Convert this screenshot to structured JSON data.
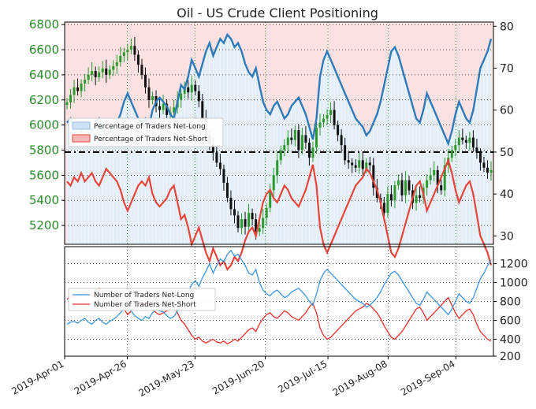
{
  "chart_data": [
    {
      "type": "candlestick",
      "title": "Oil - US Crude Client Positioning",
      "x_start": "2019-04-01",
      "x_ticks": [
        "2019-Apr-01",
        "2019-Apr-26",
        "2019-May-23",
        "2019-Jun-20",
        "2019-Jul-15",
        "2019-Aug-08",
        "2019-Sep-04"
      ],
      "y_price_ticks": [
        5200,
        5400,
        5600,
        5800,
        6000,
        6200,
        6400,
        6600,
        6800
      ],
      "y_price_range": [
        5050,
        6820
      ],
      "y_percent_ticks": [
        30,
        40,
        50,
        60,
        70,
        80
      ],
      "y_percent_range": [
        28,
        81
      ],
      "reference_line_percent": 50,
      "grid": true,
      "legend_position": "left",
      "legend_entries": [
        "Percentage of Traders Net-Long",
        "Percentage of Traders Net-Short"
      ],
      "price_close": [
        6180,
        6240,
        6300,
        6270,
        6330,
        6360,
        6400,
        6430,
        6380,
        6420,
        6450,
        6400,
        6440,
        6470,
        6500,
        6550,
        6580,
        6600,
        6630,
        6560,
        6480,
        6400,
        6300,
        6200,
        6230,
        6150,
        6120,
        6170,
        6080,
        6100,
        6140,
        6200,
        6250,
        6300,
        6260,
        6320,
        6270,
        6190,
        6050,
        5920,
        5850,
        5780,
        5700,
        5650,
        5540,
        5420,
        5330,
        5280,
        5180,
        5250,
        5190,
        5300,
        5250,
        5150,
        5180,
        5260,
        5340,
        5480,
        5600,
        5720,
        5800,
        5840,
        5900,
        5880,
        5960,
        5800,
        5920,
        5860,
        5740,
        5820,
        5980,
        6020,
        6050,
        6080,
        6120,
        6000,
        5920,
        5840,
        5720,
        5700,
        5680,
        5660,
        5720,
        5650,
        5700,
        5680,
        5500,
        5420,
        5380,
        5300,
        5450,
        5400,
        5520,
        5560,
        5440,
        5560,
        5480,
        5380,
        5440,
        5420,
        5500,
        5560,
        5600,
        5640,
        5520,
        5480,
        5680,
        5740,
        5800,
        5840,
        5900,
        5880,
        5860,
        5900,
        5820,
        5780,
        5700,
        5660,
        5620,
        5640
      ],
      "series": [
        {
          "name": "Percentage of Traders Net-Long",
          "values": [
            57,
            58,
            56,
            57,
            55,
            57,
            56,
            55,
            57,
            58,
            56,
            54,
            55,
            56,
            57,
            59,
            62,
            64,
            62,
            60,
            58,
            57,
            58,
            56,
            60,
            62,
            63,
            62,
            61,
            59,
            58,
            62,
            66,
            65,
            68,
            72,
            70,
            68,
            71,
            74,
            76,
            73,
            75,
            77,
            76,
            78,
            77,
            75,
            76,
            74,
            71,
            69,
            68,
            70,
            66,
            62,
            60,
            59,
            61,
            62,
            60,
            58,
            59,
            61,
            62,
            63,
            61,
            59,
            56,
            53,
            58,
            68,
            72,
            74,
            72,
            70,
            68,
            66,
            64,
            62,
            60,
            58,
            57,
            56,
            54,
            55,
            57,
            59,
            62,
            66,
            70,
            74,
            75,
            73,
            70,
            67,
            64,
            61,
            58,
            57,
            60,
            64,
            62,
            60,
            58,
            56,
            54,
            52,
            55,
            59,
            62,
            60,
            58,
            57,
            60,
            65,
            70,
            72,
            74,
            77
          ]
        },
        {
          "name": "Percentage of Traders Net-Short",
          "values": [
            43,
            42,
            44,
            43,
            45,
            43,
            44,
            45,
            43,
            42,
            44,
            46,
            45,
            44,
            43,
            41,
            38,
            36,
            38,
            40,
            42,
            43,
            42,
            44,
            40,
            38,
            37,
            38,
            39,
            41,
            42,
            38,
            34,
            35,
            32,
            28,
            30,
            32,
            29,
            26,
            24,
            27,
            25,
            23,
            24,
            22,
            23,
            25,
            24,
            26,
            29,
            31,
            32,
            30,
            34,
            38,
            40,
            41,
            39,
            38,
            40,
            42,
            41,
            39,
            38,
            37,
            39,
            41,
            44,
            47,
            42,
            32,
            28,
            26,
            28,
            30,
            32,
            34,
            36,
            38,
            40,
            42,
            43,
            44,
            46,
            45,
            43,
            41,
            38,
            34,
            30,
            26,
            25,
            27,
            30,
            33,
            36,
            39,
            42,
            43,
            40,
            36,
            38,
            40,
            42,
            44,
            46,
            48,
            45,
            41,
            38,
            40,
            42,
            43,
            40,
            35,
            30,
            28,
            26,
            23
          ]
        }
      ]
    },
    {
      "type": "line",
      "x_ticks": [
        "2019-Apr-01",
        "2019-Apr-26",
        "2019-May-23",
        "2019-Jun-20",
        "2019-Jul-15",
        "2019-Aug-08",
        "2019-Sep-04"
      ],
      "y_ticks": [
        200,
        400,
        600,
        800,
        1000,
        1200
      ],
      "y_range": [
        220,
        1380
      ],
      "grid": true,
      "legend_position": "left",
      "legend_entries": [
        "Number of Traders Net-Long",
        "Number of Traders Net-Short"
      ],
      "series": [
        {
          "name": "Number of Traders Net-Long",
          "values": [
            560,
            580,
            590,
            570,
            600,
            620,
            580,
            560,
            600,
            620,
            580,
            560,
            590,
            610,
            640,
            680,
            720,
            760,
            700,
            650,
            620,
            600,
            640,
            620,
            680,
            720,
            700,
            690,
            650,
            620,
            640,
            700,
            780,
            820,
            900,
            980,
            1020,
            960,
            1050,
            1120,
            1200,
            1100,
            1180,
            1250,
            1220,
            1300,
            1340,
            1280,
            1300,
            1240,
            1180,
            1100,
            1080,
            1140,
            1000,
            920,
            880,
            860,
            900,
            920,
            880,
            840,
            860,
            900,
            920,
            940,
            900,
            860,
            800,
            760,
            880,
            1020,
            1100,
            1140,
            1100,
            1060,
            1020,
            980,
            940,
            900,
            860,
            820,
            800,
            780,
            740,
            760,
            800,
            840,
            900,
            980,
            1040,
            1100,
            1120,
            1080,
            1020,
            960,
            900,
            840,
            780,
            760,
            820,
            900,
            860,
            820,
            780,
            740,
            700,
            660,
            720,
            800,
            880,
            840,
            800,
            780,
            840,
            940,
            1040,
            1100,
            1180,
            1240
          ]
        },
        {
          "name": "Number of Traders Net-Short",
          "values": [
            820,
            860,
            840,
            880,
            860,
            900,
            880,
            860,
            920,
            940,
            900,
            880,
            860,
            840,
            820,
            780,
            720,
            660,
            700,
            740,
            760,
            780,
            760,
            800,
            720,
            680,
            660,
            680,
            700,
            720,
            740,
            680,
            600,
            560,
            500,
            440,
            400,
            420,
            380,
            360,
            380,
            400,
            370,
            360,
            380,
            350,
            370,
            400,
            380,
            420,
            460,
            500,
            520,
            480,
            560,
            620,
            660,
            680,
            640,
            620,
            660,
            700,
            680,
            640,
            620,
            600,
            640,
            680,
            740,
            780,
            680,
            520,
            440,
            400,
            420,
            460,
            500,
            540,
            580,
            620,
            660,
            700,
            720,
            740,
            780,
            760,
            720,
            680,
            620,
            540,
            480,
            420,
            400,
            440,
            480,
            540,
            600,
            660,
            720,
            740,
            680,
            600,
            640,
            680,
            720,
            760,
            800,
            840,
            760,
            680,
            620,
            660,
            700,
            720,
            660,
            560,
            480,
            440,
            400,
            380
          ]
        }
      ]
    }
  ]
}
